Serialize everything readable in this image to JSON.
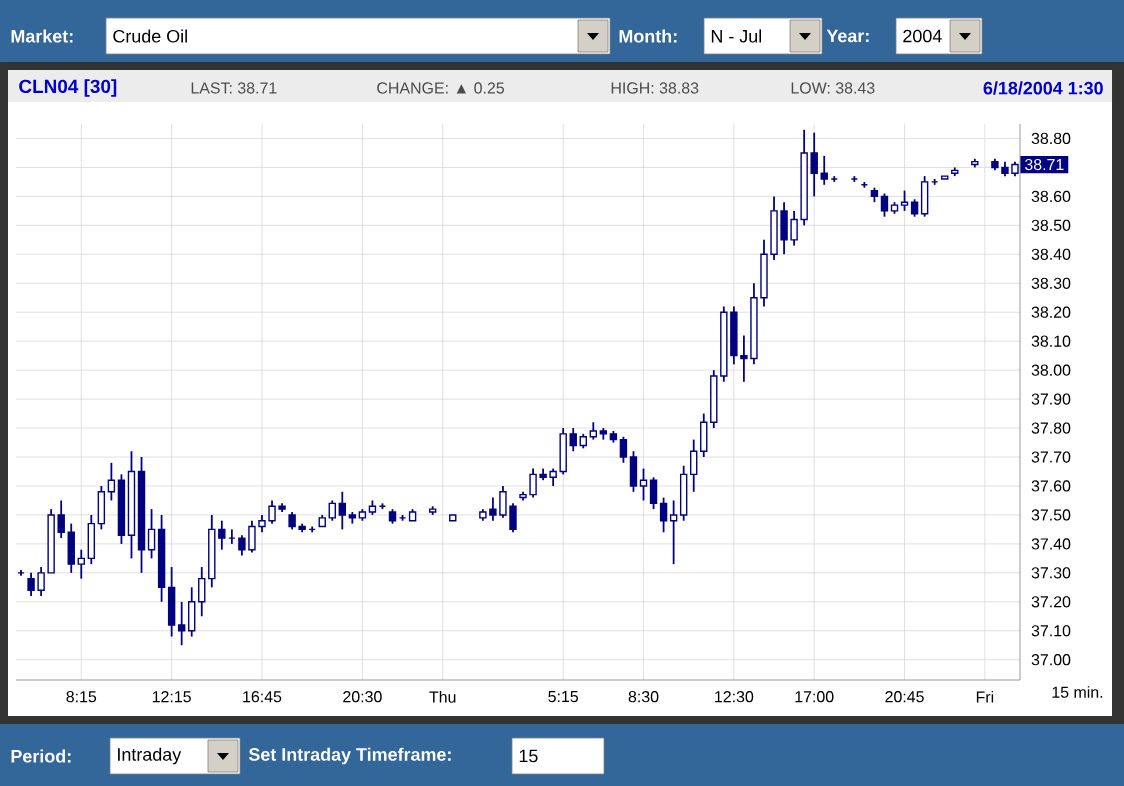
{
  "chart_data": {
    "type": "candlestick",
    "title": "CLN04 [30]",
    "categories": [
      null,
      null,
      null,
      null,
      null,
      null,
      "8:15",
      null,
      null,
      null,
      null,
      null,
      null,
      null,
      null,
      "12:15",
      null,
      null,
      null,
      null,
      null,
      null,
      null,
      null,
      "16:45",
      null,
      null,
      null,
      null,
      null,
      null,
      null,
      null,
      null,
      "20:30",
      null,
      null,
      null,
      null,
      null,
      null,
      null,
      "Thu",
      null,
      null,
      null,
      null,
      null,
      null,
      null,
      null,
      null,
      null,
      null,
      "5:15",
      null,
      null,
      null,
      null,
      null,
      null,
      null,
      "8:30",
      null,
      null,
      null,
      null,
      null,
      null,
      null,
      null,
      "12:30",
      null,
      null,
      null,
      null,
      null,
      null,
      null,
      "17:00",
      null,
      null,
      null,
      null,
      null,
      null,
      null,
      null,
      "20:45",
      null,
      null,
      null,
      null,
      null,
      null,
      null,
      "Fri",
      null,
      null,
      null
    ],
    "ohlc": [
      [
        37.3,
        37.31,
        37.29,
        37.3
      ],
      [
        37.28,
        37.3,
        37.22,
        37.24
      ],
      [
        37.24,
        37.32,
        37.22,
        37.3
      ],
      [
        37.3,
        37.52,
        37.3,
        37.5
      ],
      [
        37.5,
        37.55,
        37.42,
        37.44
      ],
      [
        37.44,
        37.47,
        37.3,
        37.33
      ],
      [
        37.33,
        37.38,
        37.28,
        37.35
      ],
      [
        37.35,
        37.5,
        37.33,
        37.47
      ],
      [
        37.47,
        37.6,
        37.45,
        37.58
      ],
      [
        37.58,
        37.68,
        37.55,
        37.62
      ],
      [
        37.62,
        37.64,
        37.4,
        37.43
      ],
      [
        37.43,
        37.72,
        37.35,
        37.65
      ],
      [
        37.65,
        37.7,
        37.3,
        37.38
      ],
      [
        37.38,
        37.52,
        37.35,
        37.45
      ],
      [
        37.45,
        37.5,
        37.2,
        37.25
      ],
      [
        37.25,
        37.32,
        37.08,
        37.12
      ],
      [
        37.12,
        37.2,
        37.05,
        37.1
      ],
      [
        37.1,
        37.25,
        37.08,
        37.2
      ],
      [
        37.2,
        37.32,
        37.15,
        37.28
      ],
      [
        37.28,
        37.5,
        37.25,
        37.45
      ],
      [
        37.45,
        37.48,
        37.38,
        37.42
      ],
      [
        37.42,
        37.45,
        37.4,
        37.42
      ],
      [
        37.42,
        37.43,
        37.36,
        37.38
      ],
      [
        37.38,
        37.48,
        37.37,
        37.46
      ],
      [
        37.46,
        37.5,
        37.44,
        37.48
      ],
      [
        37.48,
        37.55,
        37.47,
        37.53
      ],
      [
        37.53,
        37.54,
        37.51,
        37.52
      ],
      [
        37.5,
        37.51,
        37.45,
        37.46
      ],
      [
        37.46,
        37.47,
        37.44,
        37.45
      ],
      [
        37.45,
        37.46,
        37.44,
        37.45
      ],
      [
        37.46,
        37.5,
        37.46,
        37.49
      ],
      [
        37.49,
        37.55,
        37.48,
        37.54
      ],
      [
        37.54,
        37.58,
        37.45,
        37.5
      ],
      [
        37.5,
        37.51,
        37.47,
        37.49
      ],
      [
        37.49,
        37.52,
        37.48,
        37.51
      ],
      [
        37.51,
        37.55,
        37.5,
        37.53
      ],
      [
        37.53,
        37.54,
        37.52,
        37.53
      ],
      [
        37.51,
        37.52,
        37.47,
        37.48
      ],
      [
        37.49,
        37.5,
        37.48,
        37.49
      ],
      [
        37.48,
        37.52,
        37.48,
        37.51
      ],
      null,
      [
        37.51,
        37.53,
        37.5,
        37.52
      ],
      null,
      [
        37.48,
        37.5,
        37.48,
        37.5
      ],
      null,
      null,
      [
        37.49,
        37.52,
        37.48,
        37.51
      ],
      [
        37.52,
        37.56,
        37.48,
        37.5
      ],
      [
        37.5,
        37.6,
        37.49,
        37.58
      ],
      [
        37.53,
        37.54,
        37.44,
        37.45
      ],
      [
        37.56,
        37.58,
        37.55,
        37.57
      ],
      [
        37.57,
        37.66,
        37.56,
        37.64
      ],
      [
        37.64,
        37.66,
        37.62,
        37.63
      ],
      [
        37.63,
        37.66,
        37.6,
        37.65
      ],
      [
        37.65,
        37.8,
        37.64,
        37.78
      ],
      [
        37.78,
        37.8,
        37.72,
        37.74
      ],
      [
        37.74,
        37.78,
        37.73,
        37.77
      ],
      [
        37.77,
        37.82,
        37.76,
        37.79
      ],
      [
        37.79,
        37.8,
        37.76,
        37.78
      ],
      [
        37.78,
        37.79,
        37.75,
        37.76
      ],
      [
        37.76,
        37.77,
        37.68,
        37.7
      ],
      [
        37.7,
        37.72,
        37.58,
        37.6
      ],
      [
        37.6,
        37.66,
        37.55,
        37.62
      ],
      [
        37.62,
        37.63,
        37.52,
        37.54
      ],
      [
        37.54,
        37.56,
        37.44,
        37.48
      ],
      [
        37.48,
        37.55,
        37.33,
        37.5
      ],
      [
        37.5,
        37.67,
        37.48,
        37.64
      ],
      [
        37.64,
        37.76,
        37.58,
        37.72
      ],
      [
        37.72,
        37.85,
        37.7,
        37.82
      ],
      [
        37.82,
        38.0,
        37.8,
        37.98
      ],
      [
        37.98,
        38.22,
        37.96,
        38.2
      ],
      [
        38.2,
        38.22,
        38.02,
        38.05
      ],
      [
        38.05,
        38.12,
        37.96,
        38.04
      ],
      [
        38.04,
        38.3,
        38.02,
        38.25
      ],
      [
        38.25,
        38.45,
        38.22,
        38.4
      ],
      [
        38.4,
        38.6,
        38.38,
        38.55
      ],
      [
        38.55,
        38.58,
        38.4,
        38.45
      ],
      [
        38.45,
        38.55,
        38.43,
        38.52
      ],
      [
        38.52,
        38.83,
        38.5,
        38.75
      ],
      [
        38.75,
        38.82,
        38.6,
        38.68
      ],
      [
        38.68,
        38.74,
        38.64,
        38.66
      ],
      [
        38.66,
        38.67,
        38.65,
        38.66
      ],
      null,
      [
        38.66,
        38.67,
        38.65,
        38.66
      ],
      [
        38.64,
        38.65,
        38.63,
        38.64
      ],
      [
        38.62,
        38.63,
        38.58,
        38.6
      ],
      [
        38.6,
        38.61,
        38.53,
        38.55
      ],
      [
        38.55,
        38.58,
        38.54,
        38.57
      ],
      [
        38.57,
        38.62,
        38.55,
        38.58
      ],
      [
        38.58,
        38.59,
        38.53,
        38.54
      ],
      [
        38.54,
        38.67,
        38.53,
        38.65
      ],
      [
        38.65,
        38.66,
        38.64,
        38.65
      ],
      [
        38.66,
        38.67,
        38.66,
        38.67
      ],
      [
        38.68,
        38.7,
        38.67,
        38.69
      ],
      null,
      [
        38.71,
        38.73,
        38.7,
        38.72
      ],
      null,
      [
        38.72,
        38.73,
        38.69,
        38.7
      ],
      [
        38.7,
        38.72,
        38.67,
        38.68
      ],
      [
        38.68,
        38.72,
        38.67,
        38.71
      ]
    ],
    "color": "#000080",
    "ylim": [
      36.93,
      38.85
    ],
    "yticks": [
      {
        "value": 37.0,
        "label": "37.00"
      },
      {
        "value": 37.1,
        "label": "37.10"
      },
      {
        "value": 37.2,
        "label": "37.20"
      },
      {
        "value": 37.3,
        "label": "37.30"
      },
      {
        "value": 37.4,
        "label": "37.40"
      },
      {
        "value": 37.5,
        "label": "37.50"
      },
      {
        "value": 37.6,
        "label": "37.60"
      },
      {
        "value": 37.7,
        "label": "37.70"
      },
      {
        "value": 37.8,
        "label": "37.80"
      },
      {
        "value": 37.9,
        "label": "37.90"
      },
      {
        "value": 38.0,
        "label": "38.00"
      },
      {
        "value": 38.1,
        "label": "38.10"
      },
      {
        "value": 38.2,
        "label": "38.20"
      },
      {
        "value": 38.3,
        "label": "38.30"
      },
      {
        "value": 38.4,
        "label": "38.40"
      },
      {
        "value": 38.5,
        "label": "38.50"
      },
      {
        "value": 38.6,
        "label": "38.60"
      },
      {
        "value": 38.7,
        "label": null
      },
      {
        "value": 38.8,
        "label": "38.80"
      }
    ],
    "grid": true,
    "annotations": [
      "Market:",
      "Crude Oil",
      "Month:",
      "N - Jul",
      "Year:",
      "2004",
      "LAST: 38.71",
      "CHANGE: ▲ 0.25",
      "HIGH: 38.83",
      "LOW: 38.43",
      "6/18/2004 1:30",
      "15 min.",
      {
        "text": "38.71",
        "y": 38.71
      },
      "Period:",
      "Intraday",
      "Set Intraday Timeframe:",
      "15"
    ]
  }
}
